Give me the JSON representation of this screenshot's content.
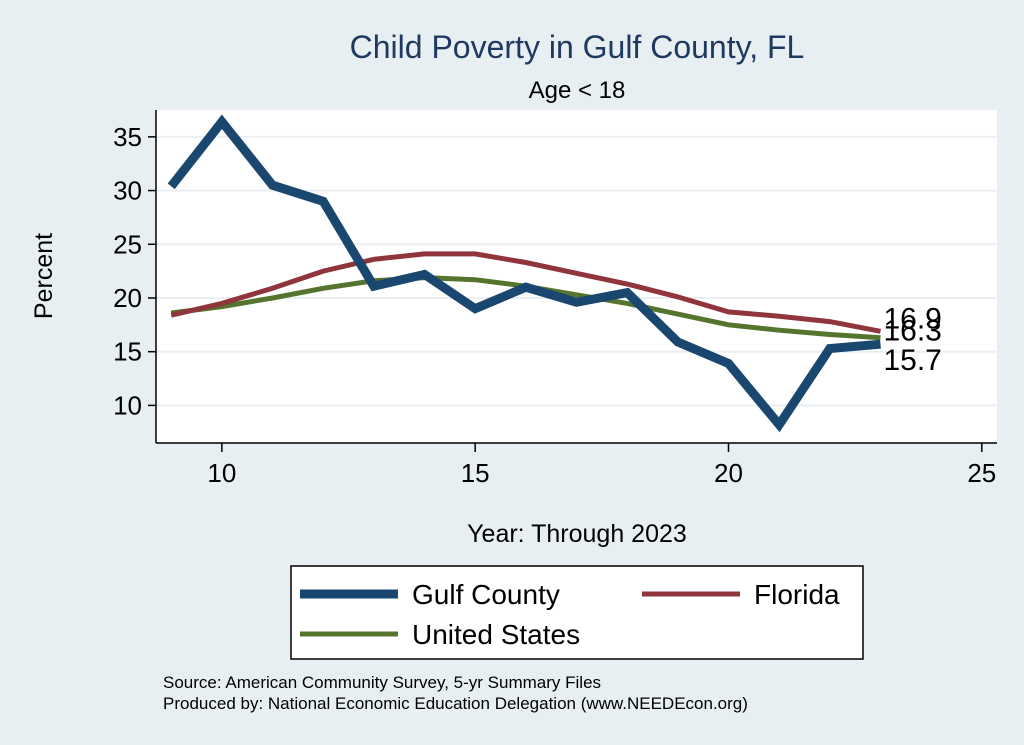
{
  "chart_data": {
    "type": "line",
    "title": "Child Poverty in Gulf County, FL",
    "subtitle": "Age < 18",
    "xlabel": "Year: Through 2023",
    "ylabel": "Percent",
    "xlim": [
      8.7,
      25.3
    ],
    "ylim": [
      6.5,
      37.5
    ],
    "xticks": [
      10,
      15,
      20,
      25
    ],
    "yticks": [
      10,
      15,
      20,
      25,
      30,
      35
    ],
    "grid": true,
    "legend_position": "bottom",
    "series": [
      {
        "name": "Gulf County",
        "color": "#1a476f",
        "end_label": "15.7",
        "x": [
          9,
          10,
          11,
          12,
          13,
          14,
          15,
          16,
          17,
          18,
          19,
          20,
          21,
          22,
          23
        ],
        "values": [
          30.4,
          36.4,
          30.5,
          29.0,
          21.1,
          22.2,
          19.0,
          21.0,
          19.6,
          20.5,
          15.9,
          13.9,
          8.2,
          15.3,
          15.7
        ]
      },
      {
        "name": "Florida",
        "color": "#90353b",
        "end_label": "16.9",
        "x": [
          9,
          10,
          11,
          12,
          13,
          14,
          15,
          16,
          17,
          18,
          19,
          20,
          21,
          22,
          23
        ],
        "values": [
          18.4,
          19.5,
          20.9,
          22.5,
          23.6,
          24.1,
          24.1,
          23.3,
          22.3,
          21.3,
          20.1,
          18.7,
          18.3,
          17.8,
          16.9
        ]
      },
      {
        "name": "United States",
        "color": "#55752f",
        "end_label": "16.3",
        "x": [
          9,
          10,
          11,
          12,
          13,
          14,
          15,
          16,
          17,
          18,
          19,
          20,
          21,
          22,
          23
        ],
        "values": [
          18.6,
          19.2,
          20.0,
          20.9,
          21.6,
          21.9,
          21.7,
          21.1,
          20.3,
          19.5,
          18.5,
          17.5,
          17.0,
          16.6,
          16.3
        ]
      }
    ]
  },
  "source_note": "Source: American Community Survey, 5-yr Summary Files",
  "produced_note": "Produced by: National Economic Education Delegation (www.NEEDEcon.org)"
}
